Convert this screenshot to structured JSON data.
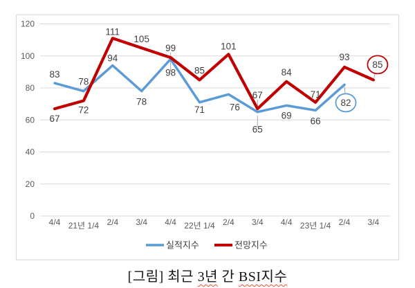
{
  "figure": {
    "caption_parts": [
      {
        "text": "[그림] 최근 ",
        "underline": false
      },
      {
        "text": "3년",
        "underline": true
      },
      {
        "text": " 간 ",
        "underline": false
      },
      {
        "text": "BSI지수",
        "underline": true
      }
    ]
  },
  "colors": {
    "actual": "#5b9bd5",
    "forecast": "#c00000",
    "gridline": "#d9d9d9",
    "axis_text": "#595959",
    "label_text": "#404040",
    "leader": "#a6a6a6",
    "frame_border": "#d9d9d9",
    "caption_underline": "#e8502d"
  },
  "chart_data": {
    "type": "line",
    "title": "",
    "xlabel": "",
    "ylabel": "",
    "ylim": [
      0,
      120
    ],
    "yticks": [
      0,
      20,
      40,
      60,
      80,
      100,
      120
    ],
    "grid": true,
    "legend_position": "bottom",
    "categories": [
      "4/4",
      "21년 1/4",
      "2/4",
      "3/4",
      "4/4",
      "22년 1/4",
      "2/4",
      "3/4",
      "4/4",
      "23년 1/4",
      "2/4",
      "3/4"
    ],
    "series": [
      {
        "name": "실적지수",
        "key": "actual",
        "color": "#5b9bd5",
        "values": [
          83,
          78,
          94,
          78,
          98,
          71,
          76,
          65,
          69,
          66,
          82
        ],
        "label_layout": [
          {
            "pos": "above",
            "dy": -8
          },
          {
            "pos": "above",
            "dy": -9
          },
          {
            "pos": "above",
            "dy": -6
          },
          {
            "pos": "below",
            "dy": 20
          },
          {
            "pos": "below",
            "dy": 24
          },
          {
            "pos": "below",
            "dy": 15
          },
          {
            "pos": "below",
            "dy": 23,
            "dx": 9
          },
          {
            "pos": "below",
            "dy": 30,
            "leader": [
              5,
              22
            ]
          },
          {
            "pos": "below",
            "dy": 19
          },
          {
            "pos": "below",
            "dy": 20
          },
          {
            "pos": "circled",
            "cdx": 2,
            "cdy": 26
          }
        ]
      },
      {
        "name": "전망지수",
        "key": "forecast",
        "color": "#c00000",
        "values": [
          67,
          72,
          111,
          105,
          99,
          85,
          101,
          67,
          84,
          71,
          93,
          85
        ],
        "label_layout": [
          {
            "pos": "below",
            "dy": 19
          },
          {
            "pos": "below",
            "dy": 18
          },
          {
            "pos": "above",
            "dy": -5
          },
          {
            "pos": "above",
            "dy": -8
          },
          {
            "pos": "above",
            "dy": -9,
            "leader": [
              -7,
              20
            ]
          },
          {
            "pos": "above",
            "dy": -9
          },
          {
            "pos": "above",
            "dy": -7
          },
          {
            "pos": "above",
            "dy": -15,
            "leader": [
              -13,
              -1
            ]
          },
          {
            "pos": "above",
            "dy": -9
          },
          {
            "pos": "above",
            "dy": -7
          },
          {
            "pos": "above",
            "dy": -10
          },
          {
            "pos": "circled",
            "cdx": 6,
            "cdy": -22
          }
        ]
      }
    ],
    "annotations": {
      "circled": [
        {
          "series": "실적지수",
          "category": "2/4",
          "value": 82
        },
        {
          "series": "전망지수",
          "category": "3/4",
          "value": 85
        }
      ]
    }
  }
}
